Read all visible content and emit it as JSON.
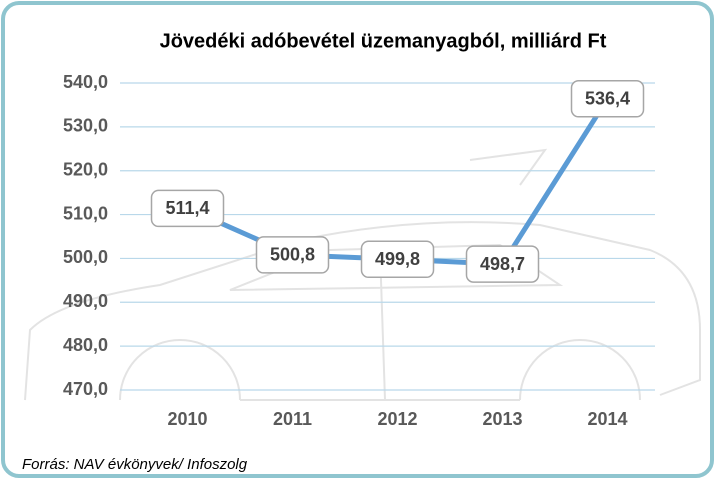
{
  "chart_data": {
    "type": "line",
    "title": "Jövedéki adóbevétel üzemanyagból, milliárd Ft",
    "categories": [
      "2010",
      "2011",
      "2012",
      "2013",
      "2014"
    ],
    "series": [
      {
        "color": "#5b9bd5",
        "values": [
          511.4,
          500.8,
          499.8,
          498.7,
          536.4
        ],
        "value_labels": [
          "511,4",
          "500,8",
          "499,8",
          "498,7",
          "536,4"
        ]
      }
    ],
    "ylim": [
      470,
      540
    ],
    "yticks": [
      {
        "value": 470,
        "label": "470,0"
      },
      {
        "value": 480,
        "label": "480,0"
      },
      {
        "value": 490,
        "label": "490,0"
      },
      {
        "value": 500,
        "label": "500,0"
      },
      {
        "value": 510,
        "label": "510,0"
      },
      {
        "value": 520,
        "label": "520,0"
      },
      {
        "value": 530,
        "label": "530,0"
      },
      {
        "value": 540,
        "label": "540,0"
      }
    ],
    "grid": true,
    "source": "Forrás: NAV évkönyvek/ Infoszolg"
  }
}
